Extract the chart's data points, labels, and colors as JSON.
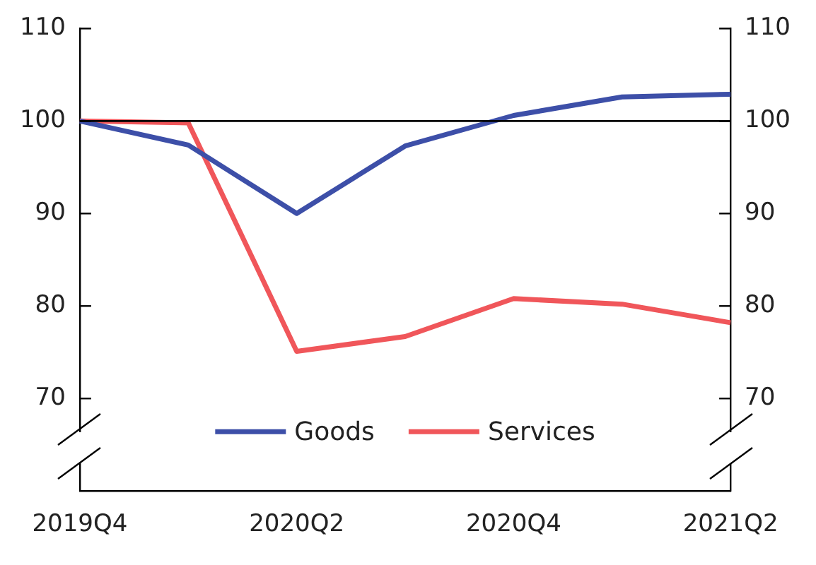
{
  "chart_data": {
    "type": "line",
    "categories": [
      "2019Q4",
      null,
      "2020Q2",
      null,
      "2020Q4",
      null,
      "2021Q2"
    ],
    "series": [
      {
        "name": "Goods",
        "color": "#3d4fa8",
        "values": [
          100,
          97.4,
          90,
          97.3,
          100.6,
          102.6,
          102.9
        ]
      },
      {
        "name": "Services",
        "color": "#f0565a",
        "values": [
          100,
          99.8,
          75.1,
          76.7,
          80.8,
          80.2,
          78.2
        ]
      }
    ],
    "ylim": [
      60,
      110
    ],
    "yticks": [
      70,
      80,
      90,
      100,
      110
    ],
    "y2lim": [
      60,
      110
    ],
    "y2ticks": [
      70,
      80,
      90,
      100,
      110
    ],
    "ref_lines": [
      {
        "axis": "y",
        "value": 100,
        "color": "#000000"
      }
    ],
    "legend": "bottom",
    "grid": false,
    "marker": "none",
    "line_style": "solid"
  }
}
